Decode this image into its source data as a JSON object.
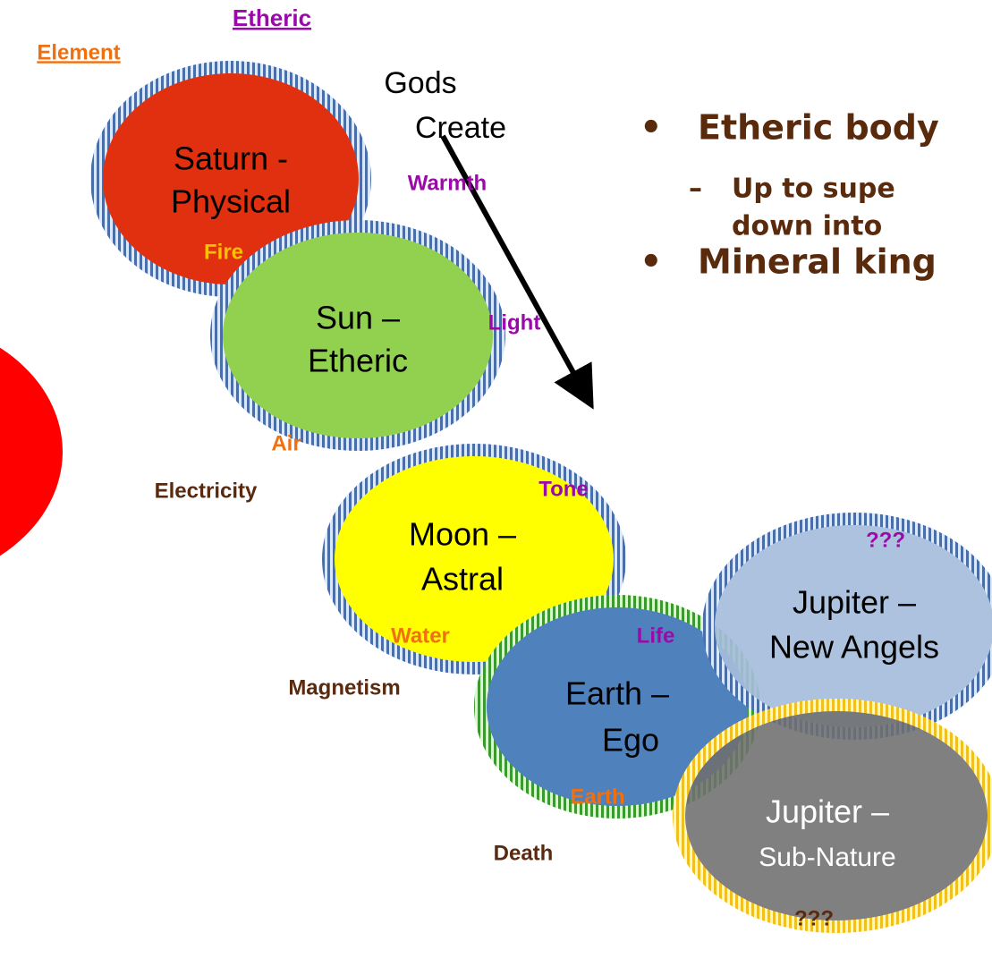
{
  "headers": {
    "element": "Element",
    "etheric": "Etheric"
  },
  "arrow_label": [
    "Gods",
    "Create"
  ],
  "nodes": [
    {
      "lines": [
        "Saturn -",
        "Physical"
      ],
      "element": "Fire",
      "etheric": "Warmth"
    },
    {
      "lines": [
        "Sun –",
        "Etheric"
      ],
      "element": "Air",
      "etheric": "Light",
      "force": "Electricity"
    },
    {
      "lines": [
        "Moon –",
        "Astral"
      ],
      "element": "Water",
      "etheric": "Tone",
      "force": "Magnetism"
    },
    {
      "lines": [
        "Earth –",
        "Ego"
      ],
      "element": "Earth",
      "etheric": "Life",
      "force": "Death"
    },
    {
      "lines": [
        "Jupiter –",
        "New Angels"
      ],
      "etheric": "???"
    },
    {
      "lines": [
        "Jupiter –",
        "Sub-Nature"
      ],
      "force": "???"
    }
  ],
  "bullets": [
    {
      "text": "Etheric body",
      "sub": [
        "Up to supe",
        "down into"
      ]
    },
    {
      "text": "Mineral king"
    }
  ]
}
